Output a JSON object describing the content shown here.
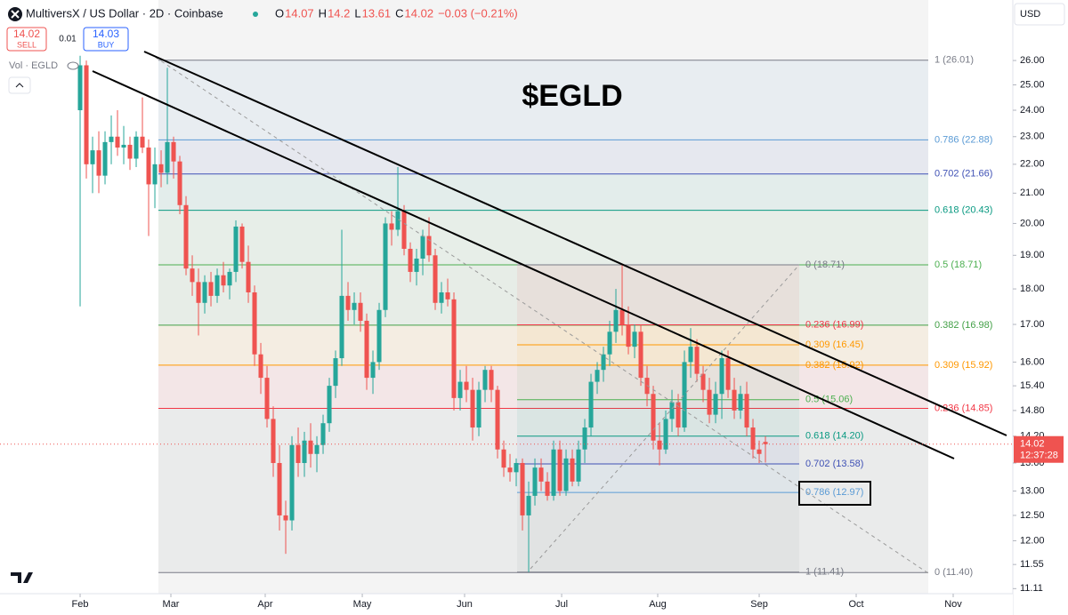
{
  "header": {
    "symbol": "MultiversX / US Dollar · 2D · Coinbase",
    "ohlc_labels": [
      "O",
      "H",
      "L",
      "C"
    ],
    "change": "−0.03 (−0.21%)",
    "sell_price": "14.02",
    "sell_label": "SELL",
    "buy_price": "14.03",
    "buy_label": "BUY",
    "spread": "0.01",
    "volume_label": "Vol · EGLD",
    "currency": "USD",
    "countdown": "12:37:28"
  },
  "chart_data": {
    "type": "candlestick",
    "title": "$EGLD",
    "log_scale": true,
    "grid": false,
    "up_color": "#26a69a",
    "down_color": "#ef5350",
    "open": [
      24.0,
      25.8,
      22.0,
      22.5,
      21.6,
      22.8,
      23.0,
      22.6,
      22.7,
      22.2,
      23.0,
      22.6,
      21.3,
      22.0,
      21.7,
      22.8,
      22.1,
      20.6,
      18.6,
      18.2,
      17.6,
      18.2,
      17.8,
      18.4,
      18.1,
      18.5,
      19.9,
      18.8,
      17.9,
      16.2,
      15.6,
      14.6,
      13.6,
      12.5,
      12.4,
      14.0,
      13.6,
      14.1,
      13.8,
      14.0,
      14.5,
      15.4,
      16.1,
      17.8,
      17.4,
      17.6,
      17.1,
      15.6,
      16.0,
      17.4,
      20.0,
      19.8,
      20.4,
      19.2,
      18.5,
      18.9,
      19.6,
      19.0,
      17.6,
      17.9,
      17.7,
      15.1,
      15.5,
      15.3,
      14.4,
      15.3,
      15.8,
      15.3,
      13.9,
      13.5,
      13.4,
      13.6,
      12.5,
      12.9,
      13.5,
      13.2,
      12.9,
      13.9,
      13.0,
      13.7,
      13.2,
      13.9,
      14.4,
      15.5,
      15.8,
      16.2,
      16.8,
      17.4,
      17.0,
      16.4,
      16.8,
      15.6,
      15.2,
      14.1,
      13.9,
      14.6,
      15.0,
      14.4,
      16.0,
      16.4,
      15.7,
      15.3,
      14.7,
      15.2,
      16.1,
      15.3,
      14.8,
      15.2,
      14.4,
      13.9,
      14.07
    ],
    "high": [
      26.2,
      26.0,
      23.0,
      23.2,
      23.2,
      23.8,
      24.0,
      23.4,
      23.0,
      23.2,
      24.5,
      22.9,
      22.6,
      22.5,
      25.7,
      23.0,
      22.3,
      20.9,
      19.0,
      18.6,
      18.4,
      18.5,
      18.6,
      18.8,
      18.6,
      20.1,
      20.0,
      19.3,
      18.1,
      16.5,
      15.9,
      14.9,
      14.0,
      12.8,
      14.2,
      14.4,
      14.3,
      14.5,
      14.2,
      14.7,
      15.6,
      16.3,
      19.8,
      18.2,
      17.9,
      17.9,
      17.3,
      16.3,
      17.6,
      20.2,
      20.4,
      21.9,
      20.6,
      19.4,
      19.2,
      19.8,
      20.2,
      19.2,
      18.2,
      18.3,
      17.9,
      15.8,
      15.9,
      15.6,
      15.5,
      15.9,
      15.9,
      15.4,
      14.1,
      13.8,
      13.7,
      13.7,
      13.2,
      13.7,
      13.7,
      13.4,
      14.1,
      14.1,
      13.9,
      13.9,
      14.1,
      14.6,
      15.7,
      16.0,
      16.4,
      17.1,
      18.0,
      18.71,
      17.5,
      17.0,
      17.0,
      15.9,
      15.4,
      14.5,
      14.8,
      15.3,
      15.2,
      16.3,
      16.9,
      16.6,
      15.9,
      15.6,
      15.5,
      16.3,
      16.3,
      15.6,
      15.4,
      15.5,
      14.6,
      14.1,
      14.2
    ],
    "low": [
      17.5,
      21.5,
      21.0,
      21.0,
      21.3,
      22.0,
      22.3,
      22.0,
      21.8,
      21.9,
      22.4,
      19.6,
      20.5,
      21.2,
      21.3,
      21.5,
      20.3,
      18.4,
      17.8,
      16.7,
      17.3,
      17.5,
      17.6,
      17.9,
      17.7,
      18.2,
      18.6,
      17.6,
      15.9,
      15.2,
      14.4,
      13.3,
      12.2,
      11.75,
      12.2,
      13.3,
      13.3,
      13.5,
      13.4,
      13.8,
      14.3,
      15.1,
      15.9,
      17.1,
      17.0,
      16.8,
      15.3,
      15.2,
      15.8,
      17.2,
      19.3,
      19.6,
      19.0,
      18.2,
      18.1,
      18.4,
      18.8,
      17.4,
      17.3,
      17.5,
      14.8,
      14.8,
      15.0,
      14.1,
      14.2,
      15.0,
      15.0,
      13.7,
      13.3,
      13.2,
      13.1,
      12.2,
      11.41,
      12.7,
      13.0,
      12.8,
      12.8,
      12.9,
      12.9,
      13.1,
      13.1,
      13.6,
      14.2,
      15.2,
      15.5,
      15.9,
      16.5,
      16.7,
      16.2,
      16.1,
      15.4,
      14.9,
      13.9,
      13.55,
      13.8,
      14.3,
      14.2,
      14.3,
      15.6,
      15.5,
      15.0,
      14.5,
      14.5,
      14.6,
      15.1,
      14.6,
      14.6,
      14.2,
      13.7,
      13.6,
      13.61
    ],
    "close": [
      25.8,
      22.0,
      22.5,
      21.6,
      22.8,
      23.0,
      22.6,
      22.7,
      22.2,
      23.0,
      22.6,
      21.3,
      22.0,
      21.7,
      22.8,
      22.1,
      20.6,
      18.6,
      18.2,
      17.6,
      18.2,
      17.8,
      18.4,
      18.1,
      18.5,
      19.9,
      18.8,
      17.9,
      16.2,
      15.6,
      14.6,
      13.6,
      12.5,
      12.4,
      14.0,
      13.6,
      14.1,
      13.8,
      14.0,
      14.5,
      15.4,
      16.1,
      17.8,
      17.4,
      17.6,
      17.1,
      15.6,
      16.0,
      17.4,
      20.0,
      19.8,
      20.4,
      19.2,
      18.5,
      18.9,
      19.6,
      19.0,
      17.6,
      17.9,
      17.7,
      15.1,
      15.5,
      15.3,
      14.4,
      15.3,
      15.8,
      15.3,
      13.9,
      13.5,
      13.4,
      13.6,
      12.5,
      12.9,
      13.5,
      13.2,
      12.9,
      13.9,
      13.0,
      13.7,
      13.2,
      13.9,
      14.4,
      15.5,
      15.8,
      16.2,
      16.8,
      17.4,
      17.0,
      16.4,
      16.8,
      15.6,
      15.2,
      14.1,
      13.9,
      14.6,
      15.0,
      14.4,
      16.0,
      16.4,
      15.7,
      15.3,
      14.7,
      15.2,
      16.1,
      15.3,
      14.8,
      15.2,
      14.4,
      13.9,
      13.8,
      14.02
    ],
    "xlim": [
      -12.86,
      149.71
    ],
    "xticks": [
      {
        "value": 0,
        "label": "Feb"
      },
      {
        "value": 14.57,
        "label": "Mar"
      },
      {
        "value": 29.71,
        "label": "Apr"
      },
      {
        "value": 45.29,
        "label": "May"
      },
      {
        "value": 61.71,
        "label": "Jun"
      },
      {
        "value": 77.29,
        "label": "Jul"
      },
      {
        "value": 92.71,
        "label": "Aug"
      },
      {
        "value": 109,
        "label": "Sep"
      },
      {
        "value": 124.57,
        "label": "Oct"
      },
      {
        "value": 140.14,
        "label": "Nov"
      }
    ],
    "ylim": [
      11.02,
      28.66
    ],
    "yticks": [
      {
        "value": 26,
        "label": "26.00"
      },
      {
        "value": 25,
        "label": "25.00"
      },
      {
        "value": 24,
        "label": "24.00"
      },
      {
        "value": 23,
        "label": "23.00"
      },
      {
        "value": 22,
        "label": "22.00"
      },
      {
        "value": 21,
        "label": "21.00"
      },
      {
        "value": 20,
        "label": "20.00"
      },
      {
        "value": 19,
        "label": "19.00"
      },
      {
        "value": 18,
        "label": "18.00"
      },
      {
        "value": 17,
        "label": "17.00"
      },
      {
        "value": 16,
        "label": "16.00"
      },
      {
        "value": 15.4,
        "label": "15.40"
      },
      {
        "value": 14.8,
        "label": "14.80"
      },
      {
        "value": 14.2,
        "label": "14.20"
      },
      {
        "value": 13.6,
        "label": "13.60"
      },
      {
        "value": 13,
        "label": "13.00"
      },
      {
        "value": 12.5,
        "label": "12.50"
      },
      {
        "value": 12,
        "label": "12.00"
      },
      {
        "value": 11.55,
        "label": "11.55"
      },
      {
        "value": 11.11,
        "label": "11.11"
      }
    ],
    "fib_left": [
      {
        "label": "1 (26.01)",
        "value": 26.01,
        "color": "#787b86"
      },
      {
        "label": "0.786 (22.88)",
        "value": 22.88,
        "color": "#5b9bd5"
      },
      {
        "label": "0.702 (21.66)",
        "value": 21.66,
        "color": "#3f51b5"
      },
      {
        "label": "0.618 (20.43)",
        "value": 20.43,
        "color": "#089981"
      },
      {
        "label": "0.5 (18.71)",
        "value": 18.71,
        "color": "#4caf50"
      },
      {
        "label": "0.382 (16.98)",
        "value": 16.98,
        "color": "#43a047"
      },
      {
        "label": "0.309 (15.92)",
        "value": 15.92,
        "color": "#ff9800"
      },
      {
        "label": "0.236 (14.85)",
        "value": 14.85,
        "color": "#f23645"
      },
      {
        "label": "0 (11.40)",
        "value": 11.4,
        "color": "#787b86"
      }
    ],
    "fib_right": [
      {
        "label": "0 (18.71)",
        "value": 18.71,
        "color": "#787b86"
      },
      {
        "label": "0.236 (16.99)",
        "value": 16.99,
        "color": "#f23645"
      },
      {
        "label": "0.309 (16.45)",
        "value": 16.45,
        "color": "#ff9800"
      },
      {
        "label": "0.382 (15.92)",
        "value": 15.92,
        "color": "#ff9800"
      },
      {
        "label": "0.5 (15.06)",
        "value": 15.06,
        "color": "#4caf50"
      },
      {
        "label": "0.618 (14.20)",
        "value": 14.2,
        "color": "#089981"
      },
      {
        "label": "0.702 (13.58)",
        "value": 13.58,
        "color": "#3f51b5"
      },
      {
        "label": "0.786 (12.97)",
        "value": 12.97,
        "color": "#5b9bd5"
      },
      {
        "label": "1 (11.41)",
        "value": 11.41,
        "color": "#787b86"
      }
    ]
  }
}
